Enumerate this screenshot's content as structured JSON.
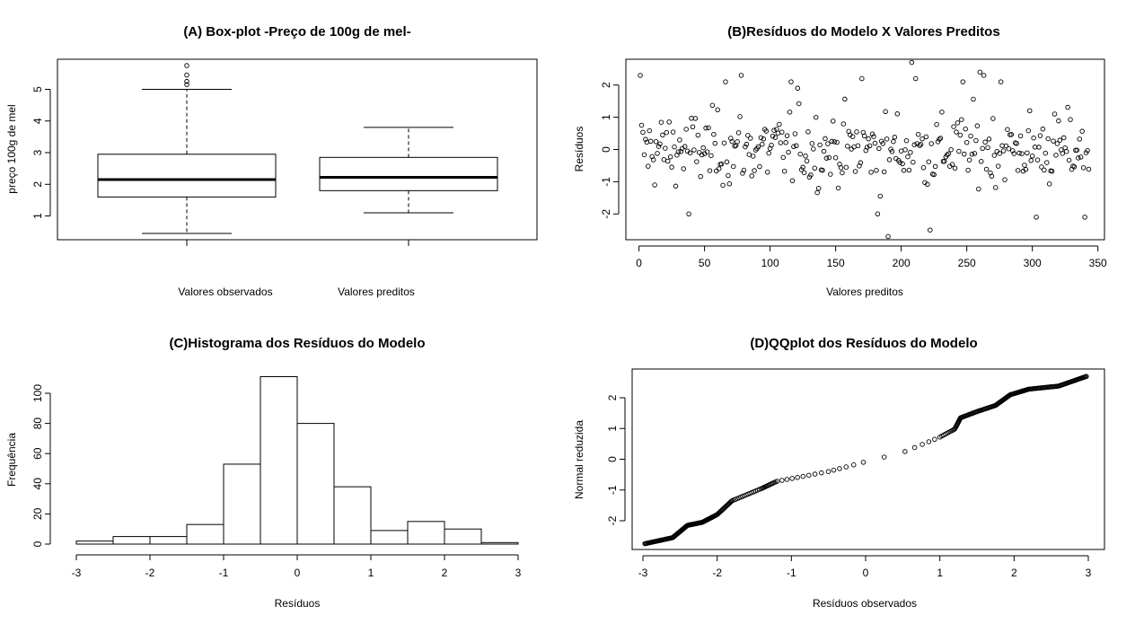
{
  "chart_data": [
    {
      "id": "A",
      "type": "box",
      "title": "(A) Box-plot -Preço de 100g de mel-",
      "ylabel": "preço 100g de mel",
      "xlabel": "",
      "ylim": [
        0.25,
        5.95
      ],
      "yticks": [
        1,
        2,
        3,
        4,
        5
      ],
      "groups": [
        {
          "label": "Valores observados",
          "whisker_low": 0.45,
          "q1": 1.6,
          "median": 2.15,
          "q3": 2.95,
          "whisker_high": 5.0,
          "outliers": [
            5.15,
            5.25,
            5.45,
            5.75
          ]
        },
        {
          "label": "Valores preditos",
          "whisker_low": 1.1,
          "q1": 1.8,
          "median": 2.22,
          "q3": 2.85,
          "whisker_high": 3.8,
          "outliers": []
        }
      ]
    },
    {
      "id": "B",
      "type": "scatter",
      "title": "(B)Resíduos do Modelo  X  Valores Preditos",
      "xlabel": "Valores preditos",
      "ylabel": "Resíduos",
      "xlim": [
        -10,
        355
      ],
      "ylim": [
        -2.8,
        2.8
      ],
      "xticks": [
        0,
        50,
        100,
        150,
        200,
        250,
        300,
        350
      ],
      "yticks": [
        -2,
        -1,
        0,
        1,
        2
      ],
      "n_points": 343,
      "highlight_points": [
        {
          "x": 1,
          "y": 2.3
        },
        {
          "x": 38,
          "y": -2.0
        },
        {
          "x": 66,
          "y": 2.1
        },
        {
          "x": 78,
          "y": 2.3
        },
        {
          "x": 116,
          "y": 2.1
        },
        {
          "x": 121,
          "y": 1.9
        },
        {
          "x": 170,
          "y": 2.2
        },
        {
          "x": 182,
          "y": -2.0
        },
        {
          "x": 190,
          "y": -2.7
        },
        {
          "x": 208,
          "y": 2.7
        },
        {
          "x": 211,
          "y": 2.2
        },
        {
          "x": 222,
          "y": -2.5
        },
        {
          "x": 247,
          "y": 2.1
        },
        {
          "x": 260,
          "y": 2.4
        },
        {
          "x": 263,
          "y": 2.3
        },
        {
          "x": 276,
          "y": 2.1
        },
        {
          "x": 303,
          "y": -2.1
        },
        {
          "x": 340,
          "y": -2.1
        }
      ]
    },
    {
      "id": "C",
      "type": "bar",
      "title": "(C)Histograma dos Resíduos do Modelo",
      "xlabel": "Resíduos",
      "ylabel": "Frequência",
      "xlim": [
        -3,
        3
      ],
      "ylim": [
        0,
        110
      ],
      "xticks": [
        -3,
        -2,
        -1,
        0,
        1,
        2,
        3
      ],
      "yticks": [
        0,
        20,
        40,
        60,
        80,
        100
      ],
      "bin_edges": [
        -3,
        -2.5,
        -2,
        -1.5,
        -1,
        -0.5,
        0,
        0.5,
        1,
        1.5,
        2,
        2.5,
        3
      ],
      "values": [
        2,
        5,
        5,
        13,
        53,
        111,
        80,
        38,
        9,
        15,
        10,
        1
      ]
    },
    {
      "id": "D",
      "type": "scatter",
      "title": "(D)QQplot dos Resíduos do Modelo",
      "xlabel": "Resíduos observados",
      "ylabel": "Normal reduzida",
      "xlim": [
        -3.1,
        3.2
      ],
      "ylim": [
        -2.9,
        2.85
      ],
      "xticks": [
        -3,
        -2,
        -1,
        0,
        1,
        2,
        3
      ],
      "yticks": [
        -2,
        -1,
        0,
        1,
        2
      ],
      "n_points": 343,
      "anchor_points": [
        {
          "x": -2.98,
          "y": -2.75
        },
        {
          "x": -2.6,
          "y": -2.55
        },
        {
          "x": -2.4,
          "y": -2.15
        },
        {
          "x": -2.2,
          "y": -2.05
        },
        {
          "x": -2.0,
          "y": -1.8
        },
        {
          "x": -1.8,
          "y": -1.35
        },
        {
          "x": -1.4,
          "y": -0.95
        },
        {
          "x": -1.2,
          "y": -0.72
        },
        {
          "x": -0.5,
          "y": -0.4
        },
        {
          "x": 0.0,
          "y": -0.08
        },
        {
          "x": 0.5,
          "y": 0.22
        },
        {
          "x": 1.0,
          "y": 0.72
        },
        {
          "x": 1.2,
          "y": 0.98
        },
        {
          "x": 1.28,
          "y": 1.35
        },
        {
          "x": 1.5,
          "y": 1.55
        },
        {
          "x": 1.75,
          "y": 1.75
        },
        {
          "x": 1.95,
          "y": 2.1
        },
        {
          "x": 2.2,
          "y": 2.28
        },
        {
          "x": 2.6,
          "y": 2.38
        },
        {
          "x": 2.98,
          "y": 2.7
        }
      ]
    }
  ]
}
